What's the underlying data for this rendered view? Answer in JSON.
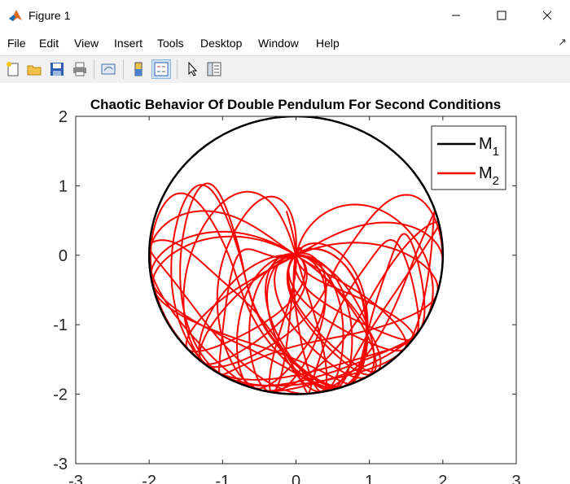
{
  "window": {
    "title": "Figure 1",
    "buttons": {
      "minimize": "minimize",
      "maximize": "maximize",
      "close": "close"
    }
  },
  "menu": [
    "File",
    "Edit",
    "View",
    "Insert",
    "Tools",
    "Desktop",
    "Window",
    "Help"
  ],
  "toolbar": {
    "icons": [
      "new-figure-icon",
      "open-file-icon",
      "save-icon",
      "print-icon",
      "link-plot-icon",
      "colorbar-icon",
      "legend-icon",
      "select-pointer-icon",
      "property-inspector-icon"
    ]
  },
  "chart_data": {
    "type": "line",
    "title": "Chaotic Behavior Of Double Pendulum For Second Conditions",
    "xlabel": "",
    "ylabel": "",
    "xlim": [
      -3,
      3
    ],
    "ylim": [
      -3,
      2
    ],
    "yticks": [
      "2",
      "1",
      "0",
      "-1",
      "-2",
      "-3"
    ],
    "xticks": [
      "-3",
      "-2",
      "-1",
      "0",
      "1",
      "2",
      "3"
    ],
    "legend": {
      "position": "top-right",
      "entries": [
        {
          "label": "M",
          "sub": "1",
          "color": "#000000"
        },
        {
          "label": "M",
          "sub": "2",
          "color": "#ff0000"
        }
      ]
    },
    "series": [
      {
        "name": "M1",
        "color": "#000000",
        "shape": "circle",
        "center": [
          0,
          0
        ],
        "radius": 2
      },
      {
        "name": "M2",
        "color": "#ff0000",
        "shape": "chaotic-trajectory"
      }
    ]
  }
}
